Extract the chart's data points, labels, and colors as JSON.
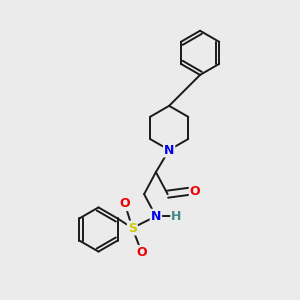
{
  "background_color": "#ebebeb",
  "bond_color": "#1a1a1a",
  "atom_colors": {
    "N": "#0000ee",
    "O": "#ee0000",
    "S": "#cccc00",
    "H": "#448888",
    "C": "#1a1a1a"
  },
  "bond_width": 1.4,
  "figsize": [
    3.0,
    3.0
  ],
  "dpi": 100
}
